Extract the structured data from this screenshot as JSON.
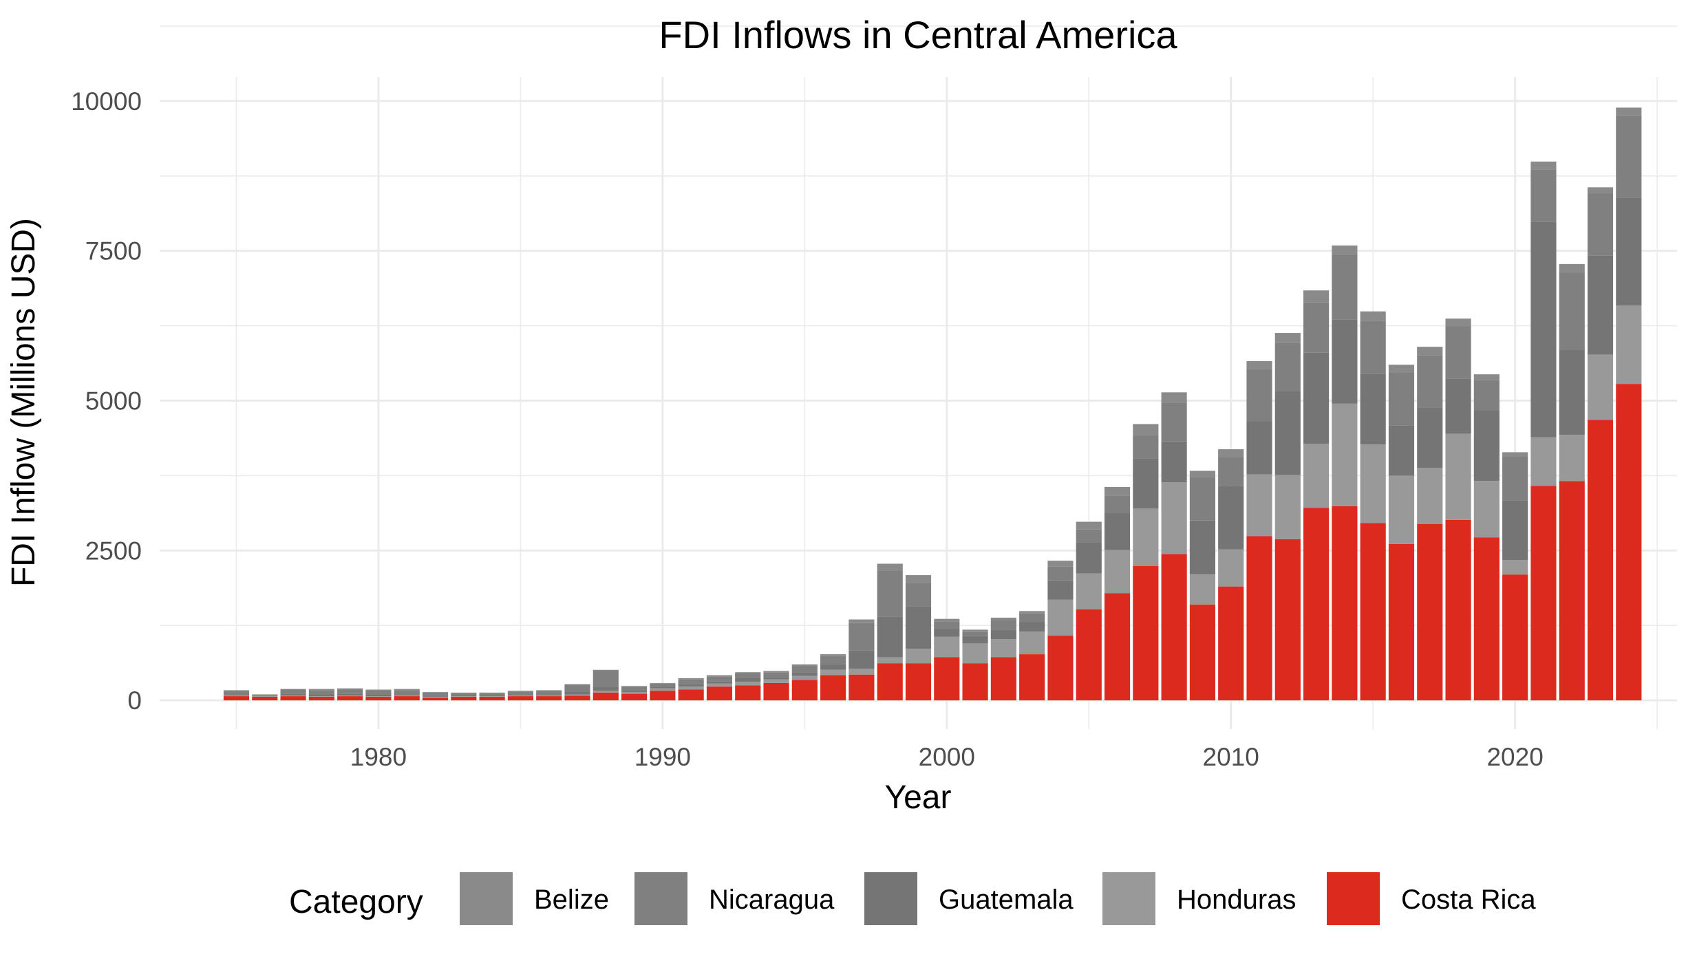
{
  "chart_data": {
    "type": "bar",
    "stacked": true,
    "title": "FDI Inflows in Central America",
    "xlabel": "Year",
    "ylabel": "FDI Inflow (Millions USD)",
    "ylim": [
      -480,
      10400
    ],
    "xlim": [
      1972.3,
      2025.7
    ],
    "yticks": [
      0,
      2500,
      5000,
      7500,
      10000
    ],
    "xticks": [
      1980,
      1990,
      2000,
      2010,
      2020
    ],
    "legend_title": "Category",
    "legend_position": "bottom",
    "grid": true,
    "years": [
      1975,
      1976,
      1977,
      1978,
      1979,
      1980,
      1981,
      1982,
      1983,
      1984,
      1985,
      1986,
      1987,
      1988,
      1989,
      1990,
      1991,
      1992,
      1993,
      1994,
      1995,
      1996,
      1997,
      1998,
      1999,
      2000,
      2001,
      2002,
      2003,
      2004,
      2005,
      2006,
      2007,
      2008,
      2009,
      2010,
      2011,
      2012,
      2013,
      2014,
      2015,
      2016,
      2017,
      2018,
      2019,
      2020,
      2021,
      2022,
      2023,
      2024
    ],
    "series": [
      {
        "name": "Costa Rica",
        "color": "#dc2a1f",
        "values": [
          70,
          60,
          70,
          60,
          70,
          60,
          70,
          40,
          60,
          60,
          70,
          70,
          80,
          130,
          110,
          160,
          180,
          230,
          250,
          290,
          340,
          420,
          430,
          620,
          620,
          720,
          620,
          720,
          770,
          1080,
          1520,
          1790,
          2240,
          2440,
          1600,
          1900,
          2740,
          2690,
          3210,
          3240,
          2960,
          2610,
          2940,
          3010,
          2720,
          2100,
          3580,
          3660,
          4680,
          5280
        ]
      },
      {
        "name": "Honduras",
        "color": "#999999",
        "values": [
          10,
          10,
          10,
          10,
          10,
          10,
          10,
          10,
          10,
          10,
          10,
          10,
          20,
          30,
          30,
          40,
          50,
          50,
          60,
          60,
          70,
          90,
          100,
          100,
          240,
          340,
          330,
          300,
          380,
          600,
          600,
          720,
          960,
          1200,
          500,
          620,
          1030,
          1070,
          1070,
          1710,
          1310,
          1140,
          940,
          1440,
          940,
          240,
          810,
          770,
          1090,
          1310
        ]
      },
      {
        "name": "Guatemala",
        "color": "#757575",
        "values": [
          20,
          10,
          30,
          30,
          30,
          30,
          20,
          20,
          20,
          20,
          20,
          20,
          40,
          60,
          30,
          20,
          40,
          40,
          60,
          40,
          60,
          90,
          300,
          680,
          710,
          130,
          120,
          160,
          160,
          310,
          520,
          620,
          840,
          680,
          900,
          1060,
          880,
          1400,
          1520,
          1400,
          1180,
          840,
          1000,
          920,
          1180,
          1000,
          3590,
          1420,
          1650,
          1800
        ]
      },
      {
        "name": "Nicaragua",
        "color": "#808080",
        "values": [
          60,
          10,
          70,
          70,
          70,
          70,
          70,
          60,
          30,
          30,
          50,
          60,
          120,
          270,
          60,
          60,
          80,
          80,
          80,
          80,
          100,
          140,
          460,
          760,
          390,
          130,
          70,
          160,
          140,
          240,
          210,
          290,
          380,
          650,
          720,
          480,
          880,
          800,
          840,
          1090,
          880,
          880,
          880,
          870,
          500,
          730,
          880,
          1290,
          1040,
          1370
        ]
      },
      {
        "name": "Belize",
        "color": "#8a8a8a",
        "values": [
          10,
          10,
          10,
          20,
          20,
          10,
          20,
          10,
          10,
          10,
          10,
          10,
          10,
          20,
          10,
          10,
          20,
          20,
          20,
          20,
          30,
          30,
          60,
          120,
          130,
          40,
          40,
          40,
          40,
          100,
          130,
          140,
          190,
          170,
          110,
          130,
          130,
          170,
          200,
          150,
          160,
          130,
          140,
          130,
          100,
          70,
          130,
          140,
          100,
          130
        ]
      }
    ]
  }
}
